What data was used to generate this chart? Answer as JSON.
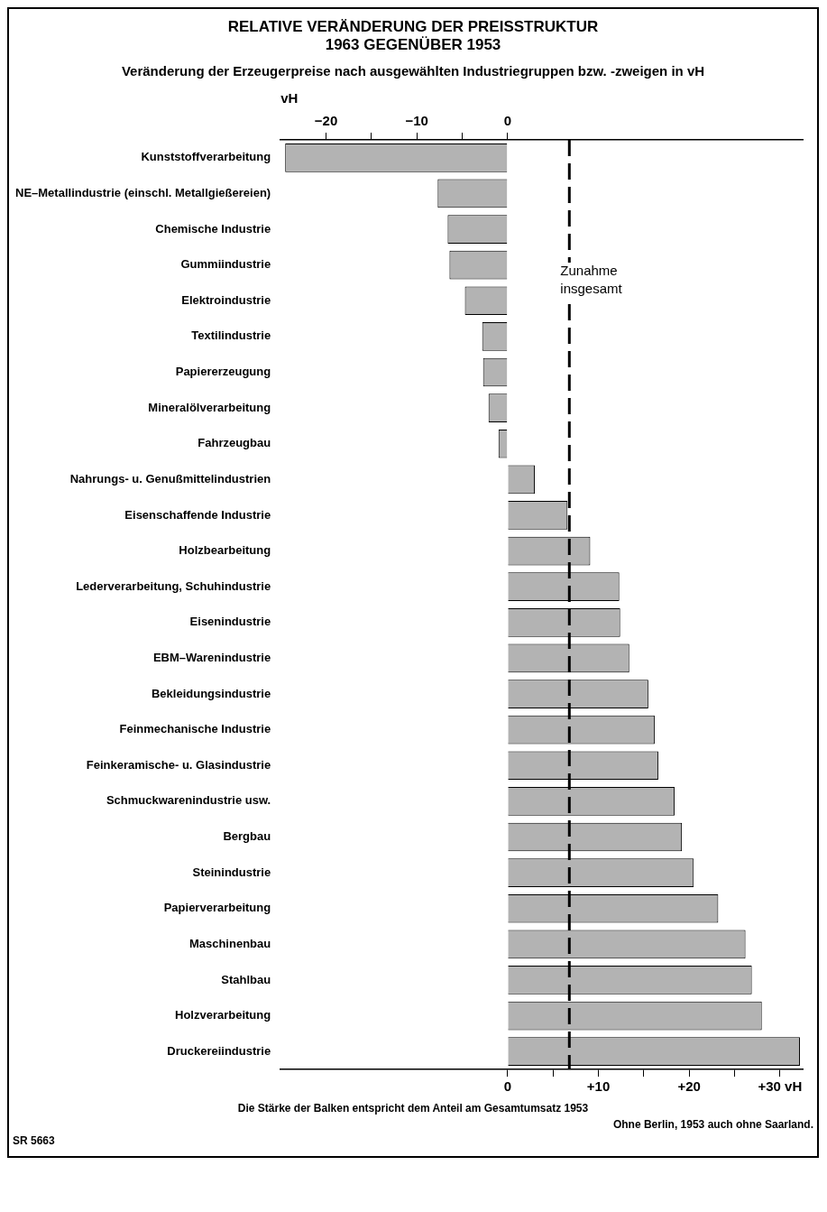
{
  "chart_data": {
    "type": "bar",
    "orientation": "horizontal",
    "title": "RELATIVE VERÄNDERUNG DER PREISSTRUKTUR 1963 GEGENÜBER 1953",
    "subtitle": "Veränderung der Erzeugerpreise nach ausgewählten Industriegruppen bzw. -zweigen in vH",
    "categories": [
      "Kunststoffverarbeitung",
      "NE–Metallindustrie (einschl. Metallgießereien)",
      "Chemische Industrie",
      "Gummiindustrie",
      "Elektroindustrie",
      "Textilindustrie",
      "Papiererzeugung",
      "Mineralölverarbeitung",
      "Fahrzeugbau",
      "Nahrungs- u. Genußmittelindustrien",
      "Eisenschaffende Industrie",
      "Holzbearbeitung",
      "Lederverarbeitung, Schuhindustrie",
      "Eisenindustrie",
      "EBM–Warenindustrie",
      "Bekleidungsindustrie",
      "Feinmechanische Industrie",
      "Feinkeramische- u. Glasindustrie",
      "Schmuckwarenindustrie usw.",
      "Bergbau",
      "Steinindustrie",
      "Papierverarbeitung",
      "Maschinenbau",
      "Stahlbau",
      "Holzverarbeitung",
      "Druckereiindustrie"
    ],
    "values": [
      -24.5,
      -7.7,
      -6.6,
      -6.4,
      -4.7,
      -2.8,
      -2.7,
      -2.1,
      -1.0,
      3.0,
      6.6,
      9.1,
      12.3,
      12.4,
      13.4,
      15.5,
      16.2,
      16.6,
      18.4,
      19.2,
      20.5,
      23.2,
      26.2,
      26.9,
      28.0,
      32.2
    ],
    "color": "#b3b3b3",
    "xlim": [
      -25,
      32.5
    ],
    "xticks": [
      0,
      {
        "value": 5,
        "label": null
      },
      {
        "value": 10,
        "label": "+10"
      },
      {
        "value": 15,
        "label": null
      },
      {
        "value": 20,
        "label": "+20"
      },
      {
        "value": 25,
        "label": null
      },
      {
        "value": 30,
        "label": "+30 vH"
      }
    ],
    "x2lim": [
      -25,
      32.5
    ],
    "x2label": "vH",
    "x2ticks": [
      {
        "value": -20,
        "label": "−20"
      },
      {
        "value": -15,
        "label": null
      },
      {
        "value": -10,
        "label": "−10"
      },
      {
        "value": -5,
        "label": null
      },
      0
    ],
    "ref_lines": [
      {
        "axis": "x",
        "value": 6.8,
        "label": "Zunahme insgesamt",
        "line_style": "dashed"
      }
    ],
    "grid": false,
    "legend": false,
    "annotations": [
      "Die Stärke der Balken entspricht dem Anteil am Gesamtumsatz 1953",
      "Ohne Berlin, 1953 auch ohne Saarland.",
      "SR 5663"
    ]
  }
}
